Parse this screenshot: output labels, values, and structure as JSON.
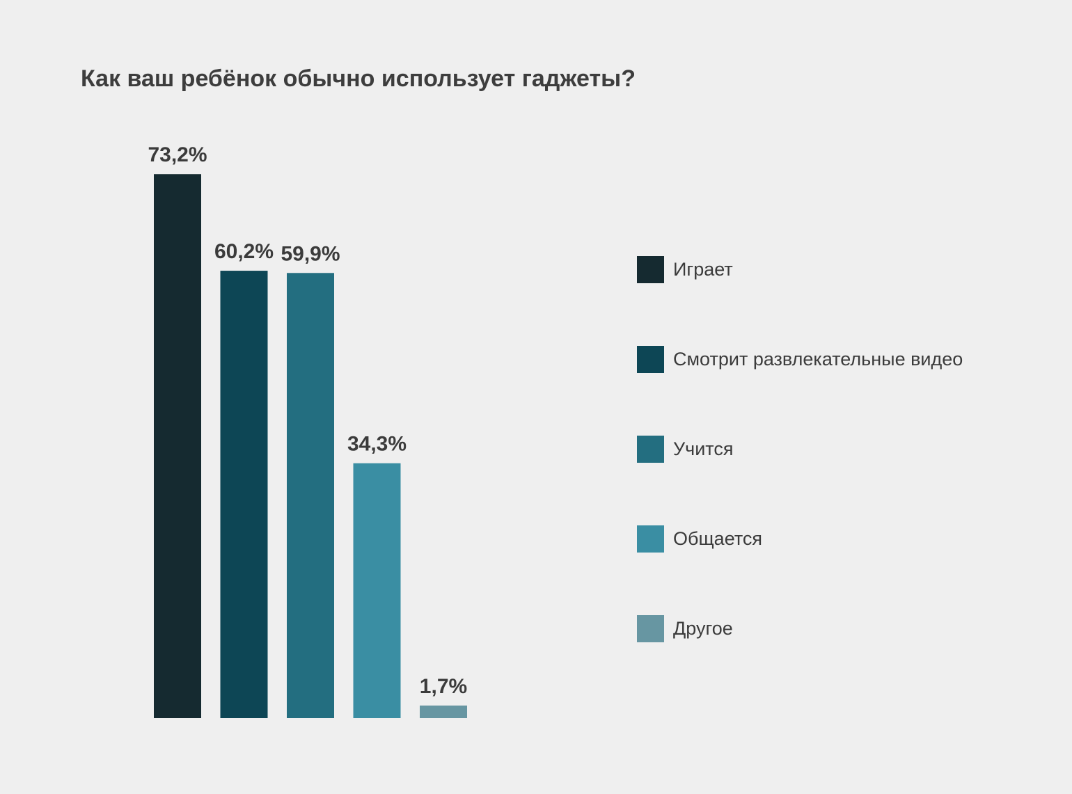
{
  "chart_data": {
    "type": "bar",
    "title": "Как ваш ребёнок обычно использует гаджеты?",
    "categories": [
      "Играет",
      "Смотрит развлекательные видео",
      "Учится",
      "Общается",
      "Другое"
    ],
    "values": [
      73.2,
      60.2,
      59.9,
      34.3,
      1.7
    ],
    "value_labels": [
      "73,2%",
      "60,2%",
      "59,9%",
      "34,3%",
      "1,7%"
    ],
    "colors": [
      "#152a30",
      "#0d4655",
      "#236e80",
      "#3a8ea3",
      "#6796a2"
    ],
    "unit": "%",
    "xlabel": "",
    "ylabel": "",
    "grid": false,
    "legend_position": "right"
  }
}
